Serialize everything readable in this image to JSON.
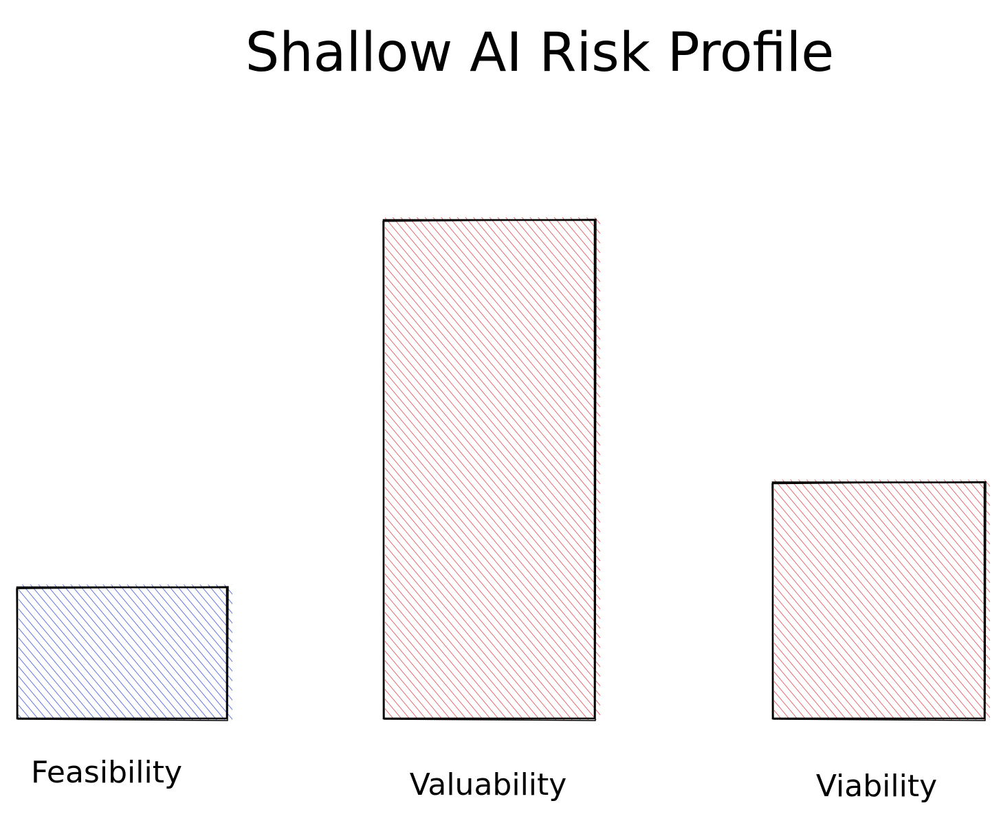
{
  "chart_data": {
    "type": "bar",
    "title": "Shallow AI Risk Profile",
    "xlabel": "",
    "ylabel": "",
    "categories": [
      "Feasibility",
      "Valuability",
      "Viability"
    ],
    "values": [
      1,
      3.8,
      1.8
    ],
    "ylim": [
      0,
      3.8
    ],
    "grid": false,
    "axes_visible": false,
    "bar_colors": [
      "#3b55d9",
      "#e0474c",
      "#e0474c"
    ],
    "outline_color": "#000000",
    "fill_style": "diagonal-hatch"
  }
}
